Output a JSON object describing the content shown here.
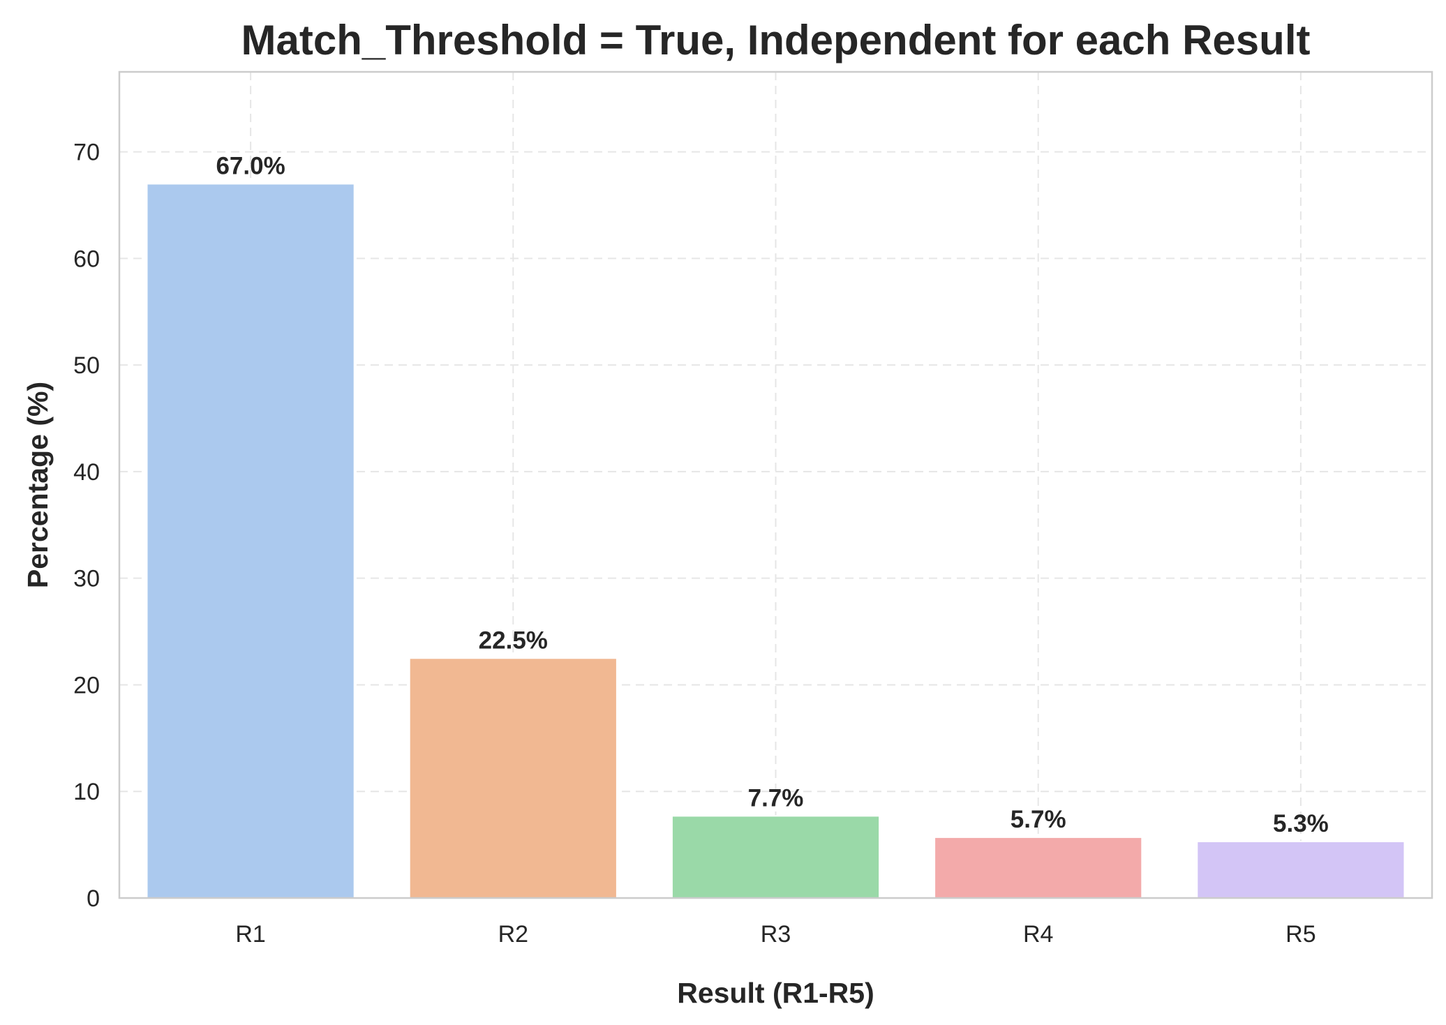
{
  "chart_data": {
    "type": "bar",
    "title": "Match_Threshold = True, Independent for each Result",
    "xlabel": "Result (R1-R5)",
    "ylabel": "Percentage (%)",
    "categories": [
      "R1",
      "R2",
      "R3",
      "R4",
      "R5"
    ],
    "values": [
      67.0,
      22.5,
      7.7,
      5.7,
      5.3
    ],
    "data_labels": [
      "67.0%",
      "22.5%",
      "7.7%",
      "5.7%",
      "5.3%"
    ],
    "colors": [
      "#abc9ee",
      "#f1b892",
      "#9ad9a8",
      "#f3aaaa",
      "#d3c5f6"
    ],
    "ylim": [
      0,
      77.5
    ],
    "yticks": [
      0,
      10,
      20,
      30,
      40,
      50,
      60,
      70
    ],
    "ytick_labels": [
      "0",
      "10",
      "20",
      "30",
      "40",
      "50",
      "60",
      "70"
    ],
    "grid": true,
    "grid_style": "dashed",
    "legend": false
  }
}
